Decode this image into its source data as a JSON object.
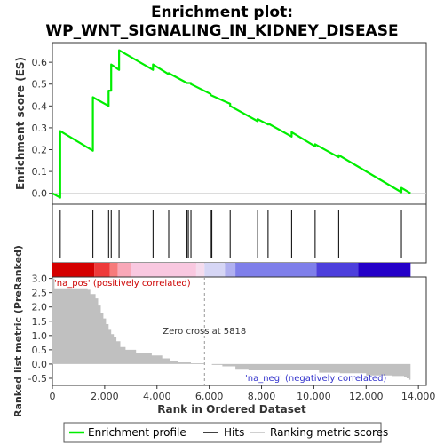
{
  "chart_data": {
    "type": "line",
    "title_line1": "Enrichment plot:",
    "title_line2": "WP_WNT_SIGNALING_IN_KIDNEY_DISEASE",
    "n_genes": 13700,
    "es_panel": {
      "ylabel": "Enrichment score (ES)",
      "ylim": [
        -0.05,
        0.69
      ],
      "yticks": [
        0.0,
        0.1,
        0.2,
        0.3,
        0.4,
        0.5,
        0.6
      ],
      "ytick_labels": [
        "0.0",
        "0.1",
        "0.2",
        "0.3",
        "0.4",
        "0.5",
        "0.6"
      ],
      "x": [
        0,
        300,
        300,
        1550,
        1550,
        2150,
        2150,
        2250,
        2250,
        2550,
        2550,
        3850,
        3850,
        4450,
        4450,
        5150,
        5150,
        5200,
        5200,
        5300,
        5300,
        6050,
        6050,
        6800,
        6800,
        7850,
        7850,
        8250,
        8250,
        9150,
        9150,
        10050,
        10050,
        10950,
        10950,
        13350,
        13350,
        13700
      ],
      "y": [
        0.0,
        -0.02,
        0.285,
        0.195,
        0.44,
        0.4,
        0.47,
        0.47,
        0.59,
        0.565,
        0.655,
        0.565,
        0.59,
        0.545,
        0.55,
        0.505,
        0.505,
        0.505,
        0.505,
        0.505,
        0.5,
        0.455,
        0.45,
        0.41,
        0.4,
        0.33,
        0.34,
        0.315,
        0.32,
        0.26,
        0.28,
        0.215,
        0.225,
        0.165,
        0.175,
        0.005,
        0.025,
        0.0
      ]
    },
    "hits": [
      300,
      1550,
      2150,
      2250,
      2550,
      3850,
      4450,
      5150,
      5200,
      5300,
      6050,
      6100,
      6800,
      7850,
      8250,
      9150,
      10050,
      10950,
      13350
    ],
    "rank_panel": {
      "ylabel": "Ranked list metric (PreRanked)",
      "xlabel": "Rank in Ordered Dataset",
      "ylim": [
        -0.75,
        3.05
      ],
      "yticks": [
        -0.5,
        0.0,
        0.5,
        1.0,
        1.5,
        2.0,
        2.5,
        3.0
      ],
      "ytick_labels": [
        "-0.5",
        "0.0",
        "0.5",
        "1.0",
        "1.5",
        "2.0",
        "2.5",
        "3.0"
      ],
      "xticks": [
        0,
        2000,
        4000,
        6000,
        8000,
        10000,
        12000,
        14000
      ],
      "xtick_labels": [
        "0",
        "2,000",
        "4,000",
        "6,000",
        "8,000",
        "10,000",
        "12,000",
        "14,000"
      ],
      "x": [
        0,
        80,
        1350,
        1450,
        1650,
        1750,
        1850,
        1950,
        2050,
        2150,
        2250,
        2350,
        2450,
        2600,
        2800,
        3200,
        3800,
        4200,
        4500,
        4800,
        5300,
        5800,
        6100,
        6500,
        7000,
        7500,
        8000,
        9000,
        10000,
        10200,
        11000,
        12000,
        13000,
        13450,
        13550,
        13650,
        13700
      ],
      "y": [
        3.0,
        2.65,
        2.6,
        2.45,
        2.3,
        2.05,
        1.8,
        1.6,
        1.4,
        1.2,
        1.05,
        0.95,
        0.8,
        0.6,
        0.5,
        0.4,
        0.3,
        0.2,
        0.12,
        0.06,
        0.03,
        0.0,
        -0.03,
        -0.08,
        -0.2,
        -0.22,
        -0.22,
        -0.22,
        -0.22,
        -0.3,
        -0.32,
        -0.4,
        -0.42,
        -0.45,
        -0.5,
        -0.55,
        -0.6
      ],
      "zero_cross_label": "Zero cross at 5818",
      "zero_cross": 5818,
      "pos_label": "'na_pos' (positively correlated)",
      "neg_label": "'na_neg' (negatively correlated)"
    },
    "color_bar": [
      {
        "x0": 0,
        "x1": 1600,
        "color": "#d40000"
      },
      {
        "x0": 1600,
        "x1": 2200,
        "color": "#ee3a3a"
      },
      {
        "x0": 2200,
        "x1": 2500,
        "color": "#f77b7b"
      },
      {
        "x0": 2500,
        "x1": 3000,
        "color": "#f9a8b8"
      },
      {
        "x0": 3000,
        "x1": 5500,
        "color": "#f9c8e0"
      },
      {
        "x0": 5500,
        "x1": 5818,
        "color": "#f5dcee"
      },
      {
        "x0": 5818,
        "x1": 6600,
        "color": "#d6d6f5"
      },
      {
        "x0": 6600,
        "x1": 7000,
        "color": "#b0b0f0"
      },
      {
        "x0": 7000,
        "x1": 10100,
        "color": "#7f7fea"
      },
      {
        "x0": 10100,
        "x1": 11700,
        "color": "#4d3fdc"
      },
      {
        "x0": 11700,
        "x1": 13700,
        "color": "#2400c8"
      }
    ],
    "legend": [
      "Enrichment profile",
      "Hits",
      "Ranking metric scores"
    ],
    "colors": {
      "es_line": "#00ee00",
      "hit": "#000000",
      "metric": "#c0c0c0",
      "pos_text": "#cc0000",
      "neg_text": "#3333cc"
    }
  }
}
